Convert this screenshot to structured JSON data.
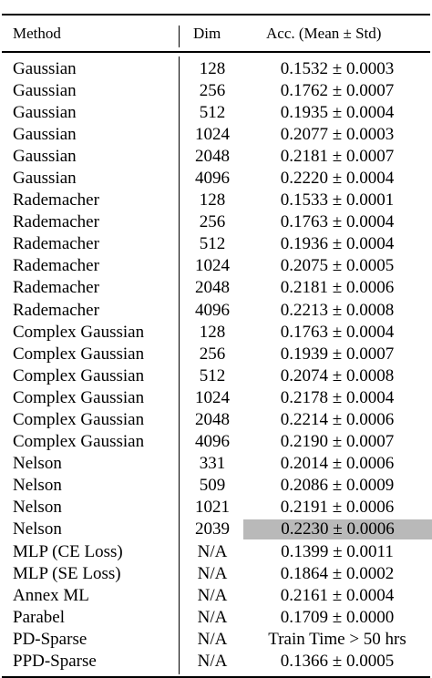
{
  "table": {
    "headers": {
      "method": "Method",
      "dim": "Dim",
      "acc": "Acc. (Mean ± Std)"
    },
    "rows": [
      {
        "method": "Gaussian",
        "dim": "128",
        "acc": "0.1532 ± 0.0003"
      },
      {
        "method": "Gaussian",
        "dim": "256",
        "acc": "0.1762 ± 0.0007"
      },
      {
        "method": "Gaussian",
        "dim": "512",
        "acc": "0.1935 ± 0.0004"
      },
      {
        "method": "Gaussian",
        "dim": "1024",
        "acc": "0.2077 ± 0.0003"
      },
      {
        "method": "Gaussian",
        "dim": "2048",
        "acc": "0.2181 ± 0.0007"
      },
      {
        "method": "Gaussian",
        "dim": "4096",
        "acc": "0.2220 ± 0.0004"
      },
      {
        "method": "Rademacher",
        "dim": "128",
        "acc": "0.1533 ± 0.0001"
      },
      {
        "method": "Rademacher",
        "dim": "256",
        "acc": "0.1763 ± 0.0004"
      },
      {
        "method": "Rademacher",
        "dim": "512",
        "acc": "0.1936 ± 0.0004"
      },
      {
        "method": "Rademacher",
        "dim": "1024",
        "acc": "0.2075 ± 0.0005"
      },
      {
        "method": "Rademacher",
        "dim": "2048",
        "acc": "0.2181 ± 0.0006"
      },
      {
        "method": "Rademacher",
        "dim": "4096",
        "acc": "0.2213 ± 0.0008"
      },
      {
        "method": "Complex Gaussian",
        "dim": "128",
        "acc": "0.1763 ± 0.0004"
      },
      {
        "method": "Complex Gaussian",
        "dim": "256",
        "acc": "0.1939 ± 0.0007"
      },
      {
        "method": "Complex Gaussian",
        "dim": "512",
        "acc": "0.2074 ± 0.0008"
      },
      {
        "method": "Complex Gaussian",
        "dim": "1024",
        "acc": "0.2178 ± 0.0004"
      },
      {
        "method": "Complex Gaussian",
        "dim": "2048",
        "acc": "0.2214 ± 0.0006"
      },
      {
        "method": "Complex Gaussian",
        "dim": "4096",
        "acc": "0.2190 ± 0.0007"
      },
      {
        "method": "Nelson",
        "dim": "331",
        "acc": "0.2014 ± 0.0006"
      },
      {
        "method": "Nelson",
        "dim": "509",
        "acc": "0.2086 ± 0.0009"
      },
      {
        "method": "Nelson",
        "dim": "1021",
        "acc": "0.2191 ± 0.0006"
      },
      {
        "method": "Nelson",
        "dim": "2039",
        "acc": "0.2230 ± 0.0006",
        "highlight": true
      },
      {
        "method": "MLP (CE Loss)",
        "dim": "N/A",
        "acc": "0.1399 ± 0.0011"
      },
      {
        "method": "MLP (SE Loss)",
        "dim": "N/A",
        "acc": "0.1864 ± 0.0002"
      },
      {
        "method": "Annex ML",
        "dim": "N/A",
        "acc": "0.2161 ± 0.0004"
      },
      {
        "method": "Parabel",
        "dim": "N/A",
        "acc": "0.1709 ± 0.0000"
      },
      {
        "method": "PD-Sparse",
        "dim": "N/A",
        "acc": "Train Time > 50 hrs"
      },
      {
        "method": "PPD-Sparse",
        "dim": "N/A",
        "acc": "0.1366 ± 0.0005"
      }
    ],
    "highlight_color": "#b9b9b9"
  }
}
